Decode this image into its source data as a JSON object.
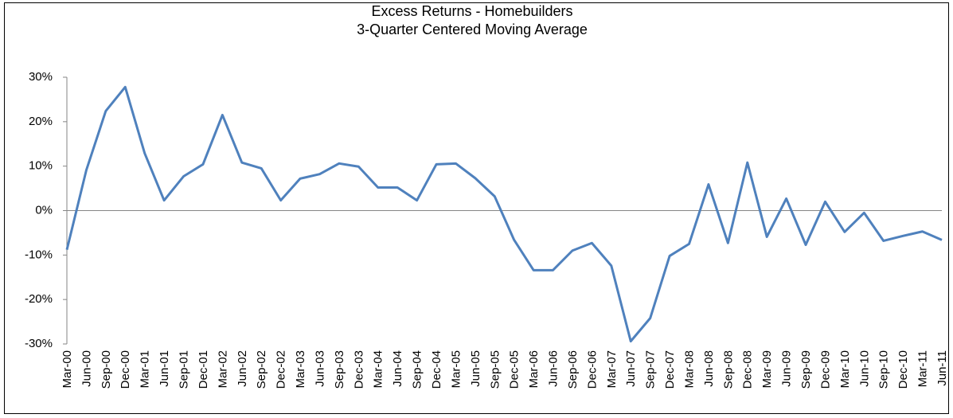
{
  "chart_data": {
    "type": "line",
    "title": "Excess Returns - Homebuilders",
    "subtitle": "3-Quarter Centered Moving Average",
    "categories": [
      "Mar-00",
      "Jun-00",
      "Sep-00",
      "Dec-00",
      "Mar-01",
      "Jun-01",
      "Sep-01",
      "Dec-01",
      "Mar-02",
      "Jun-02",
      "Sep-02",
      "Dec-02",
      "Mar-03",
      "Jun-03",
      "Sep-03",
      "Dec-03",
      "Mar-04",
      "Jun-04",
      "Sep-04",
      "Dec-04",
      "Mar-05",
      "Jun-05",
      "Sep-05",
      "Dec-05",
      "Mar-06",
      "Jun-06",
      "Sep-06",
      "Dec-06",
      "Mar-07",
      "Jun-07",
      "Sep-07",
      "Dec-07",
      "Mar-08",
      "Jun-08",
      "Sep-08",
      "Dec-08",
      "Mar-09",
      "Jun-09",
      "Sep-09",
      "Dec-09",
      "Mar-10",
      "Jun-10",
      "Sep-10",
      "Dec-10",
      "Mar-11",
      "Jun-11"
    ],
    "values": [
      -8.8,
      9.1,
      22.4,
      27.8,
      12.9,
      2.3,
      7.7,
      10.4,
      21.5,
      10.8,
      9.5,
      2.3,
      7.2,
      8.2,
      10.6,
      9.9,
      5.2,
      5.2,
      2.3,
      10.4,
      10.6,
      7.3,
      3.2,
      -6.6,
      -13.4,
      -13.4,
      -9.0,
      -7.3,
      -12.4,
      -29.4,
      -24.2,
      -10.2,
      -7.5,
      5.9,
      -7.3,
      10.8,
      -5.9,
      2.7,
      -7.7,
      2.0,
      -4.8,
      -0.5,
      -6.8,
      -5.7,
      -4.7,
      -6.6
    ],
    "color": "#4f81bd",
    "ylim": [
      -30,
      30
    ],
    "yticks": [
      {
        "value": -30,
        "label": "-30%"
      },
      {
        "value": -20,
        "label": "-20%"
      },
      {
        "value": -10,
        "label": "-10%"
      },
      {
        "value": 0,
        "label": "0%"
      },
      {
        "value": 10,
        "label": "10%"
      },
      {
        "value": 20,
        "label": "20%"
      },
      {
        "value": 30,
        "label": "30%"
      }
    ],
    "grid": false
  }
}
